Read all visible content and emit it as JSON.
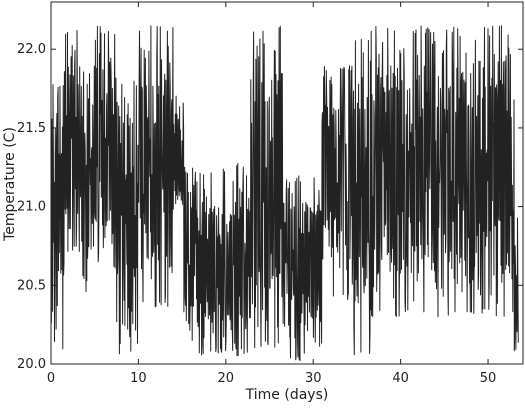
{
  "chart_data": {
    "type": "line",
    "title": "",
    "xlabel": "Time (days)",
    "ylabel": "Temperature (C)",
    "xlim": [
      0,
      54
    ],
    "ylim": [
      20.0,
      22.3
    ],
    "x_ticks": [
      0,
      10,
      20,
      30,
      40,
      50
    ],
    "x_tick_labels": [
      "0",
      "10",
      "20",
      "30",
      "40",
      "50"
    ],
    "y_ticks": [
      20.0,
      20.5,
      21.0,
      21.5,
      22.0
    ],
    "y_tick_labels": [
      "20.0",
      "20.5",
      "21.0",
      "21.5",
      "22.0"
    ],
    "grid": false,
    "line_color": "#222222",
    "segments": [
      {
        "x": [
          0.0,
          53.5
        ],
        "low": 20.05,
        "high": 22.15
      },
      {
        "x": [
          0.0,
          1.5
        ],
        "low": 20.05,
        "high": 21.8
      },
      {
        "x": [
          1.5,
          3.5
        ],
        "low": 20.7,
        "high": 22.15
      },
      {
        "x": [
          3.5,
          5.0
        ],
        "low": 20.45,
        "high": 21.9
      },
      {
        "x": [
          5.0,
          7.5
        ],
        "low": 20.6,
        "high": 22.15
      },
      {
        "x": [
          7.5,
          10.0
        ],
        "low": 20.05,
        "high": 21.8
      },
      {
        "x": [
          10.0,
          14.0
        ],
        "low": 20.35,
        "high": 22.15
      },
      {
        "x": [
          14.0,
          15.2
        ],
        "low": 20.85,
        "high": 21.75
      },
      {
        "x": [
          15.2,
          19.5
        ],
        "low": 20.05,
        "high": 21.25
      },
      {
        "x": [
          19.5,
          22.8
        ],
        "low": 20.05,
        "high": 21.3
      },
      {
        "x": [
          22.8,
          26.5
        ],
        "low": 20.1,
        "high": 22.15
      },
      {
        "x": [
          26.5,
          31.0
        ],
        "low": 20.02,
        "high": 21.2
      },
      {
        "x": [
          31.0,
          34.5
        ],
        "low": 20.4,
        "high": 21.9
      },
      {
        "x": [
          34.5,
          36.5
        ],
        "low": 20.05,
        "high": 22.1
      },
      {
        "x": [
          36.5,
          53.0
        ],
        "low": 20.3,
        "high": 22.15
      },
      {
        "x": [
          53.0,
          54.0
        ],
        "low": 20.05,
        "high": 21.0
      }
    ]
  }
}
